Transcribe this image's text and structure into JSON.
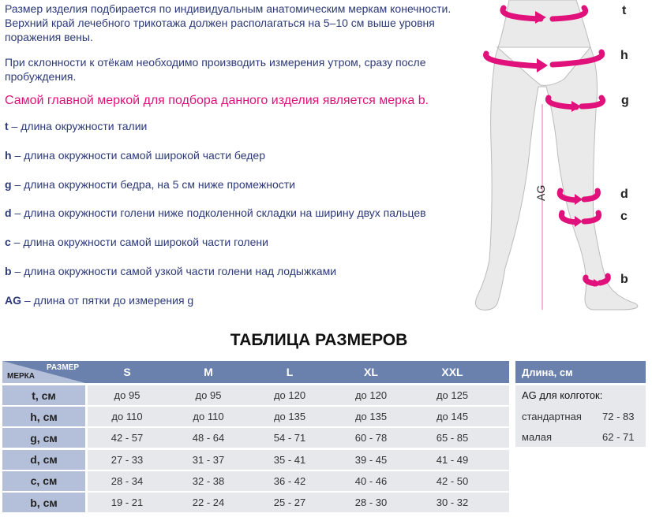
{
  "intro": {
    "p1": "Размер изделия подбирается по индивидуальным анатомическим меркам конечности. Верхний край лечебного трикотажа должен располагаться на 5–10 см выше уровня поражения вены.",
    "p2": "При склонности к отёкам необходимо производить измерения утром, сразу после пробуждения.",
    "highlight": "Самой главной меркой для подбора данного изделия является мерка b."
  },
  "definitions": [
    {
      "key": "t",
      "text": " – длина окружности талии"
    },
    {
      "key": "h",
      "text": " – длина окружности самой широкой части бедер"
    },
    {
      "key": "g",
      "text": " – длина окружности бедра, на 5 см ниже промежности"
    },
    {
      "key": "d",
      "text": " – длина окружности голени ниже подколенной складки на ширину двух пальцев"
    },
    {
      "key": "c",
      "text": " – длина окружности самой широкой части голени"
    },
    {
      "key": "b",
      "text": " – длина окружности самой узкой части голени над лодыжками"
    },
    {
      "key": "AG",
      "text": " – длина от пятки до измерения g"
    }
  ],
  "figure": {
    "labels": [
      "t",
      "h",
      "g",
      "d",
      "c",
      "b"
    ],
    "ag_label": "AG",
    "accent": "#e0117a"
  },
  "table": {
    "title": "ТАБЛИЦА РАЗМЕРОВ",
    "corner_top": "РАЗМЕР",
    "corner_bottom": "МЕРКА",
    "sizes": [
      "S",
      "M",
      "L",
      "XL",
      "XXL"
    ],
    "rows": [
      {
        "label": "t, см",
        "values": [
          "до 95",
          "до 95",
          "до 120",
          "до 120",
          "до 125"
        ]
      },
      {
        "label": "h, см",
        "values": [
          "до 110",
          "до 110",
          "до 135",
          "до 135",
          "до 145"
        ]
      },
      {
        "label": "g, см",
        "values": [
          "42 - 57",
          "48 - 64",
          "54 - 71",
          "60 - 78",
          "65 - 85"
        ]
      },
      {
        "label": "d, см",
        "values": [
          "27 - 33",
          "31 - 37",
          "35 - 41",
          "39 - 45",
          "41 - 49"
        ]
      },
      {
        "label": "c, см",
        "values": [
          "28 - 34",
          "32 - 38",
          "36 - 42",
          "40 - 46",
          "42 - 50"
        ]
      },
      {
        "label": "b, см",
        "values": [
          "19 - 21",
          "22 - 24",
          "25 - 27",
          "28 - 30",
          "30 - 32"
        ]
      }
    ]
  },
  "length_table": {
    "header": "Длина, см",
    "subtitle": "AG для колготок:",
    "rows": [
      {
        "label": "стандартная",
        "value": "72 - 83"
      },
      {
        "label": "малая",
        "value": "62 - 71"
      }
    ]
  },
  "colors": {
    "header": "#6a80ad",
    "label": "#b4c0da",
    "cell": "#e6e8eb",
    "text": "#2c3a78",
    "accent": "#e0117a"
  }
}
